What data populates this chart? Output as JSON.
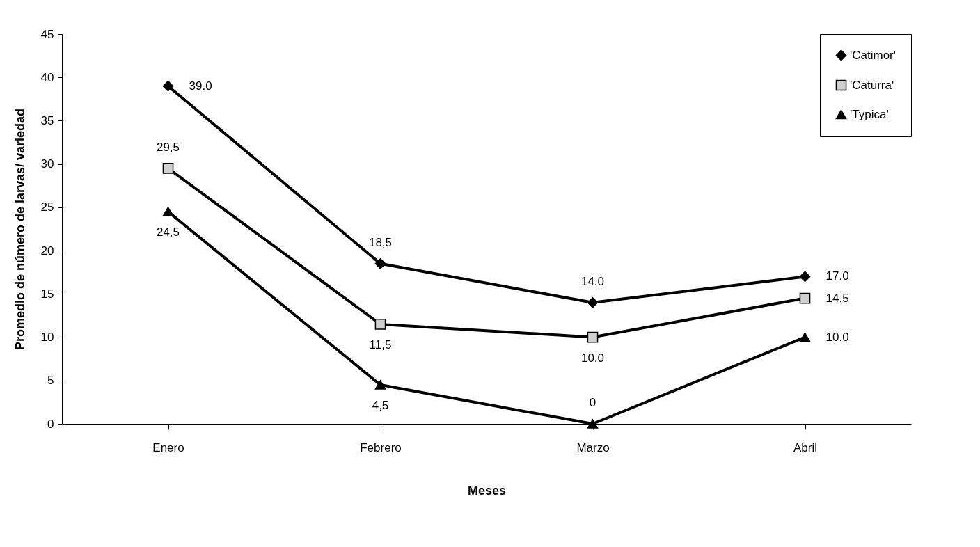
{
  "chart_data": {
    "type": "line",
    "xlabel": "Meses",
    "ylabel": "Promedio de número de larvas/ variedad",
    "categories": [
      "Enero",
      "Febrero",
      "Marzo",
      "Abril"
    ],
    "series": [
      {
        "name": "'Catimor'",
        "color": "#000000",
        "marker": "diamond",
        "values": [
          39,
          18.5,
          14,
          17
        ],
        "value_labels": [
          "39.0",
          "18,5",
          "14.0",
          "17.0"
        ]
      },
      {
        "name": "'Caturra'",
        "color": "#000000",
        "marker": "square",
        "values": [
          29.5,
          11.5,
          10,
          14.5
        ],
        "value_labels": [
          "29,5",
          "11,5",
          "10.0",
          "14,5"
        ]
      },
      {
        "name": "'Typica'",
        "color": "#000000",
        "marker": "triangle",
        "values": [
          24.5,
          4.5,
          0,
          10
        ],
        "value_labels": [
          "24,5",
          "4,5",
          "0",
          "10.0"
        ]
      }
    ],
    "ylim": [
      0,
      45
    ],
    "yticks": [
      0,
      5,
      10,
      15,
      20,
      25,
      30,
      35,
      40,
      45
    ],
    "grid": false,
    "legend": "top right",
    "line_style": "solid"
  }
}
